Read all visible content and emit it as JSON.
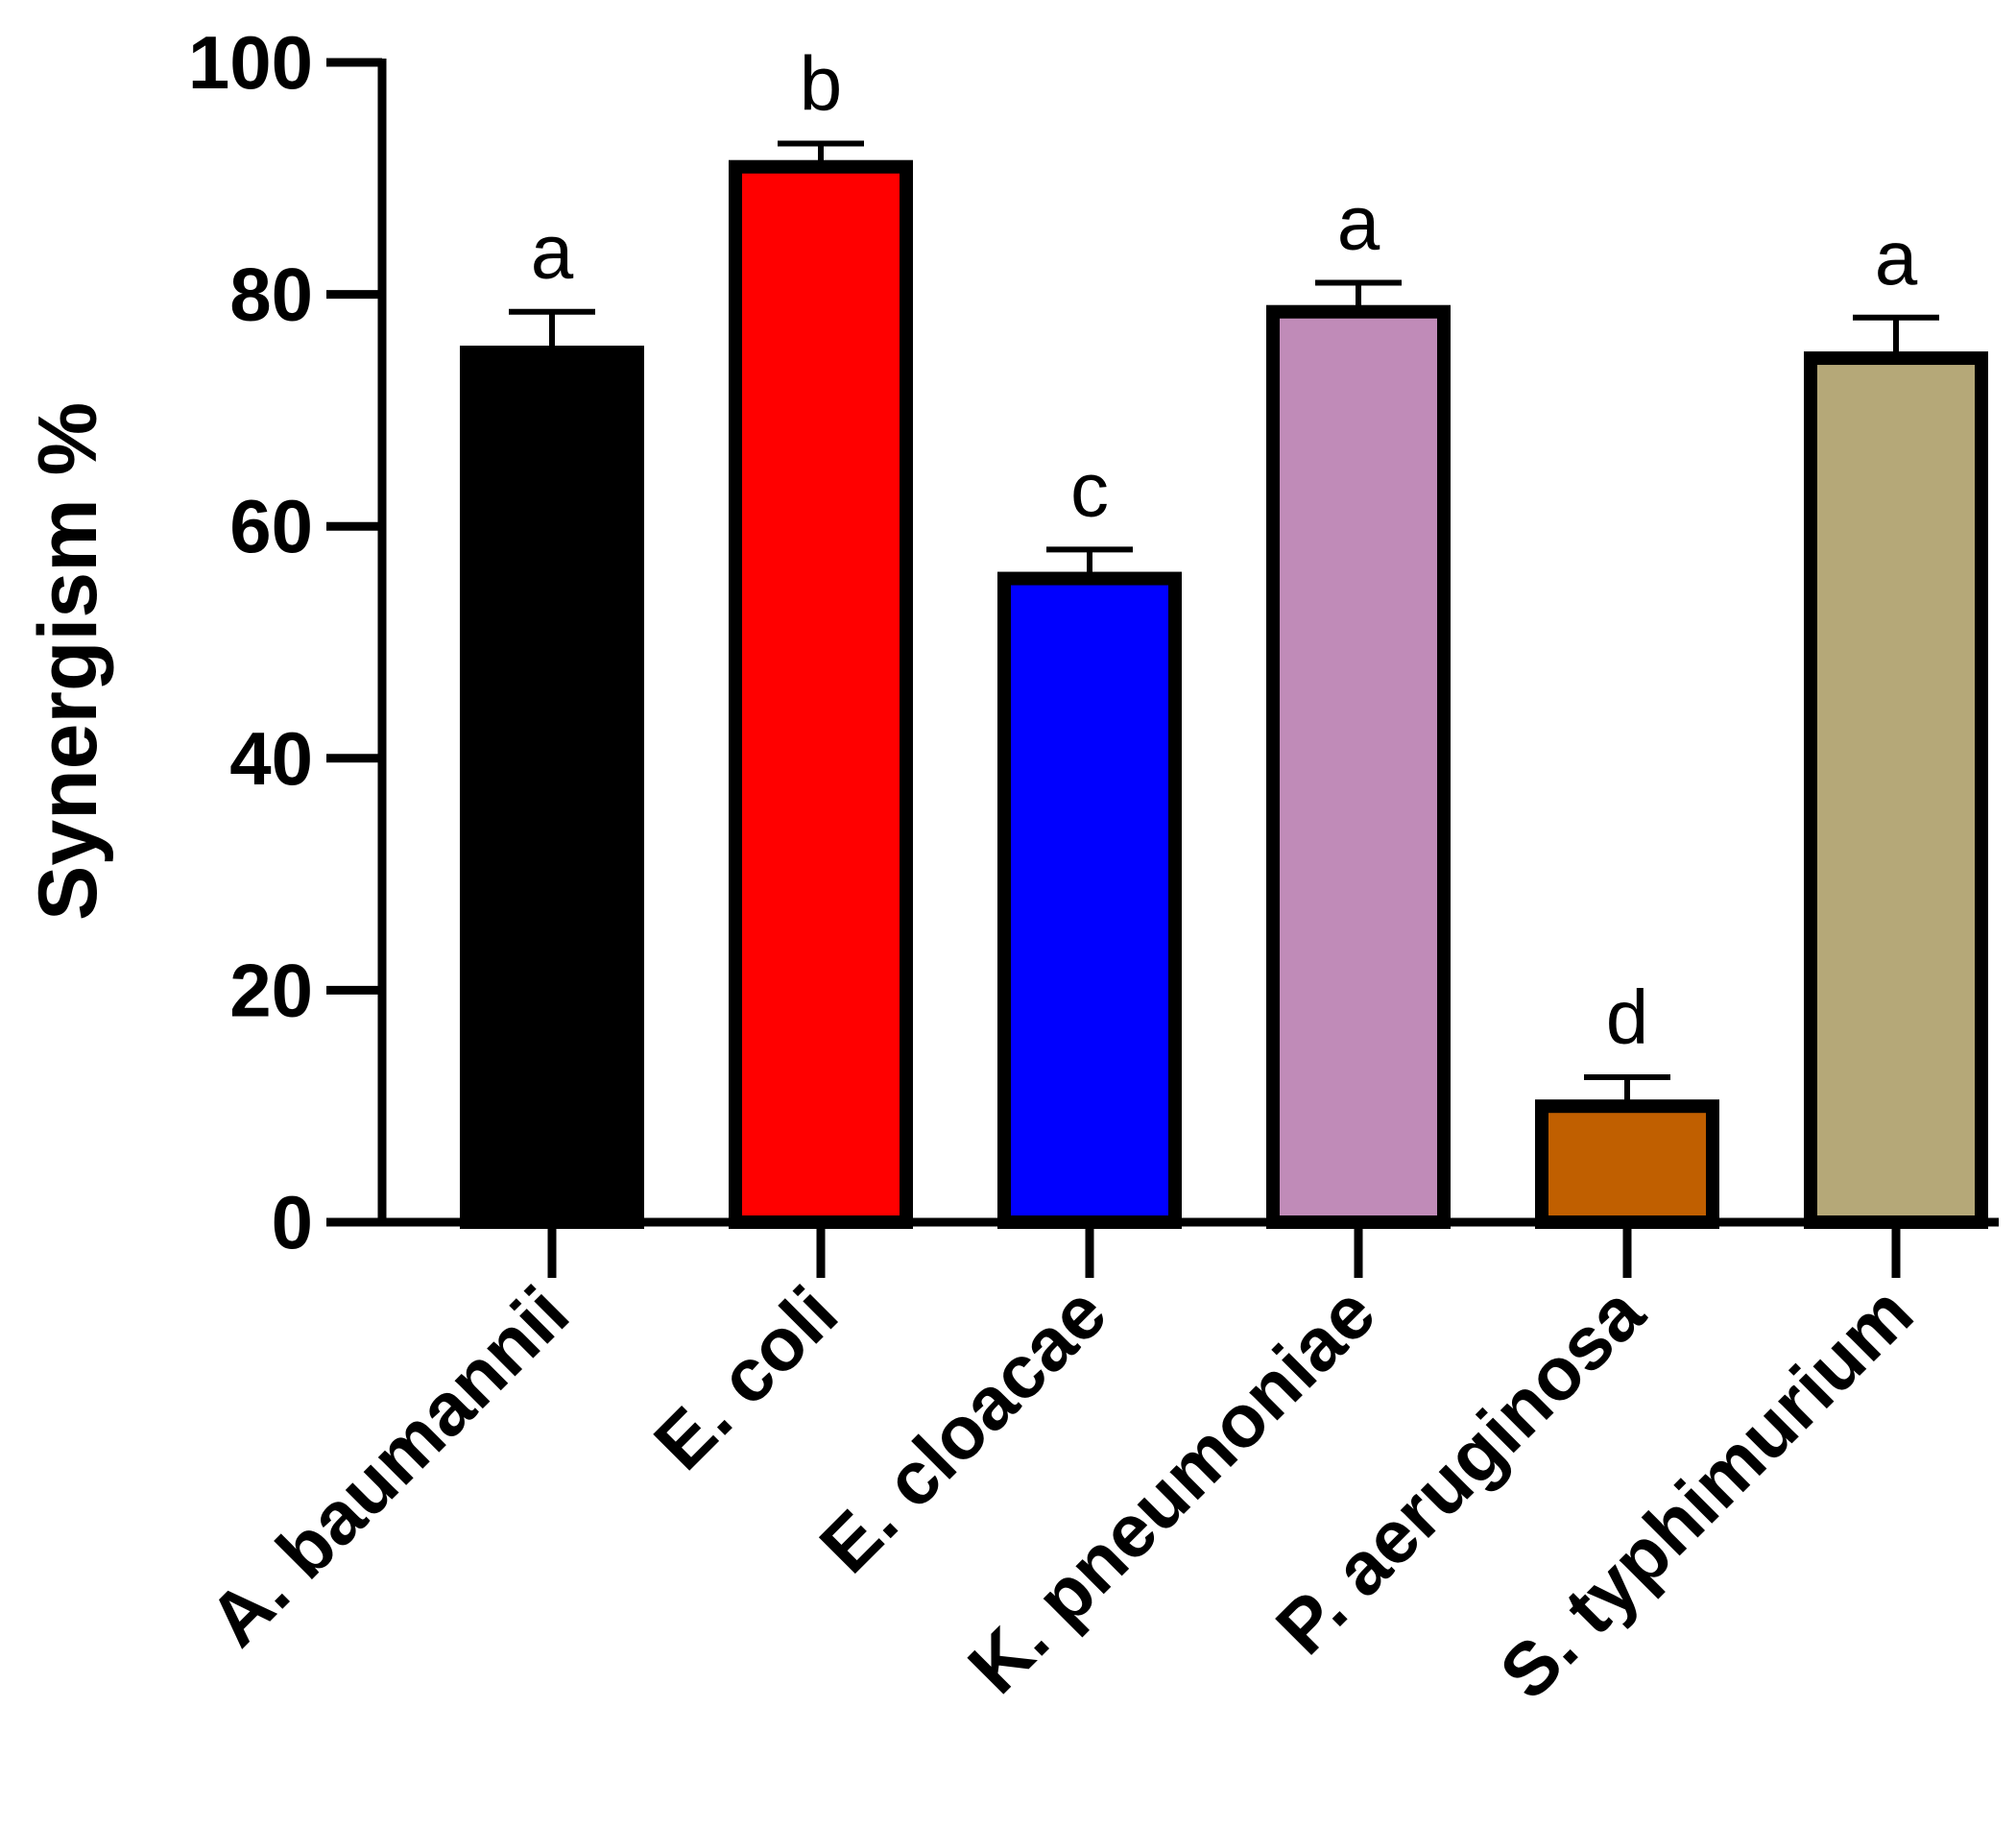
{
  "chart_data": {
    "type": "bar",
    "title": "",
    "xlabel": "",
    "ylabel": "Synergism %",
    "ylim": [
      0,
      100
    ],
    "yticks": [
      0,
      20,
      40,
      60,
      80,
      100
    ],
    "grid": false,
    "categories": [
      "A. baumannii",
      "E. coli",
      "E. cloacae",
      "K. pneumoniae",
      "P. aeruginosa",
      "S. typhimurium"
    ],
    "values": [
      75,
      91,
      55.5,
      78.5,
      10,
      74.5
    ],
    "errors": [
      3.5,
      2,
      2.5,
      2.5,
      2.5,
      3.5
    ],
    "significance_labels": [
      "a",
      "b",
      "c",
      "a",
      "d",
      "a"
    ],
    "colors": [
      "#000000",
      "#ff0000",
      "#0000ff",
      "#c08bb8",
      "#c05f00",
      "#b5a878"
    ]
  }
}
